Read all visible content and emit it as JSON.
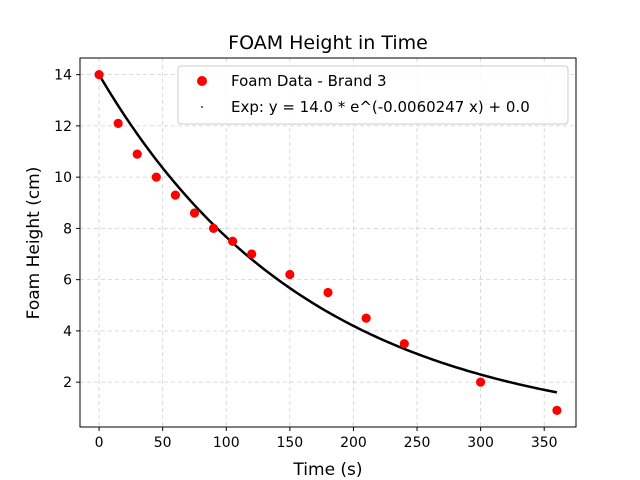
{
  "chart_data": {
    "type": "scatter",
    "title": "FOAM Height in Time",
    "xlabel": "Time (s)",
    "ylabel": "Foam Height (cm)",
    "xlim": [
      -15,
      375
    ],
    "ylim": [
      0.25,
      14.65
    ],
    "xticks": [
      0,
      50,
      100,
      150,
      200,
      250,
      300,
      350
    ],
    "yticks": [
      2,
      4,
      6,
      8,
      10,
      12,
      14
    ],
    "grid": true,
    "legend_position": "top-right",
    "series": [
      {
        "name": "Foam Data - Brand 3",
        "kind": "scatter",
        "color": "#ff0000",
        "x": [
          0,
          15,
          30,
          45,
          60,
          75,
          90,
          105,
          120,
          150,
          180,
          210,
          240,
          300,
          360
        ],
        "y": [
          14.0,
          12.1,
          10.9,
          10.0,
          9.3,
          8.6,
          8.0,
          7.5,
          7.0,
          6.2,
          5.5,
          4.5,
          3.5,
          2.0,
          0.9
        ]
      },
      {
        "name": "Exp: y = 14.0 * e^(-0.0060247 x) + 0.0",
        "kind": "line",
        "color": "#000000",
        "a": 14.0,
        "b": -0.0060247,
        "c": 0.0,
        "x_range": [
          0,
          360
        ]
      }
    ]
  }
}
